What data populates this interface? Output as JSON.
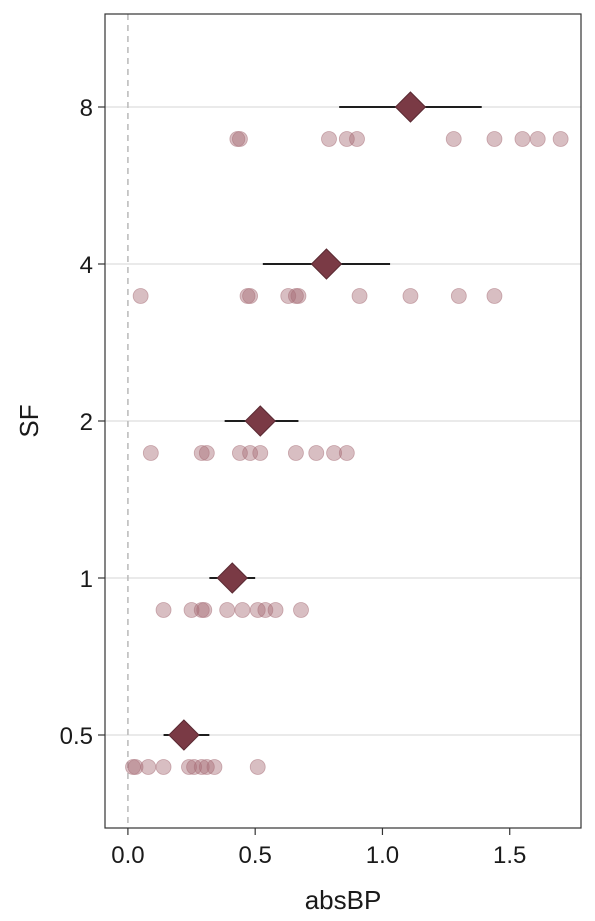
{
  "chart_data": {
    "type": "scatter",
    "title": "",
    "xlabel": "absBP",
    "ylabel": "SF",
    "xlim": [
      -0.09,
      1.78
    ],
    "x_ticks": [
      "0.0",
      "0.5",
      "1.0",
      "1.5"
    ],
    "x_tick_values": [
      0,
      0.5,
      1.0,
      1.5
    ],
    "categories": [
      "0.5",
      "1",
      "2",
      "4",
      "8"
    ],
    "grid": "horizontal at categories",
    "reference_line_x": 0,
    "colors": {
      "point": "#a86f78",
      "mean": "#7a3a45",
      "grid": "#e3e3e3",
      "refline": "#bdbdbd",
      "errorbar": "#000000"
    },
    "series": [
      {
        "category": "0.5",
        "points": [
          0.02,
          0.03,
          0.08,
          0.14,
          0.24,
          0.26,
          0.29,
          0.31,
          0.34,
          0.51
        ],
        "mean": 0.22,
        "ci": [
          0.14,
          0.32
        ]
      },
      {
        "category": "1",
        "points": [
          0.14,
          0.25,
          0.29,
          0.3,
          0.39,
          0.45,
          0.51,
          0.54,
          0.58,
          0.68
        ],
        "mean": 0.41,
        "ci": [
          0.32,
          0.5
        ]
      },
      {
        "category": "2",
        "points": [
          0.09,
          0.29,
          0.31,
          0.44,
          0.48,
          0.52,
          0.66,
          0.74,
          0.81,
          0.86
        ],
        "mean": 0.52,
        "ci": [
          0.38,
          0.67
        ]
      },
      {
        "category": "4",
        "points": [
          0.05,
          0.47,
          0.48,
          0.63,
          0.66,
          0.67,
          0.91,
          1.11,
          1.3,
          1.44
        ],
        "mean": 0.78,
        "ci": [
          0.53,
          1.03
        ]
      },
      {
        "category": "8",
        "points": [
          0.43,
          0.44,
          0.79,
          0.86,
          0.9,
          1.28,
          1.44,
          1.55,
          1.61,
          1.7
        ],
        "mean": 1.11,
        "ci": [
          0.83,
          1.39
        ]
      }
    ]
  }
}
